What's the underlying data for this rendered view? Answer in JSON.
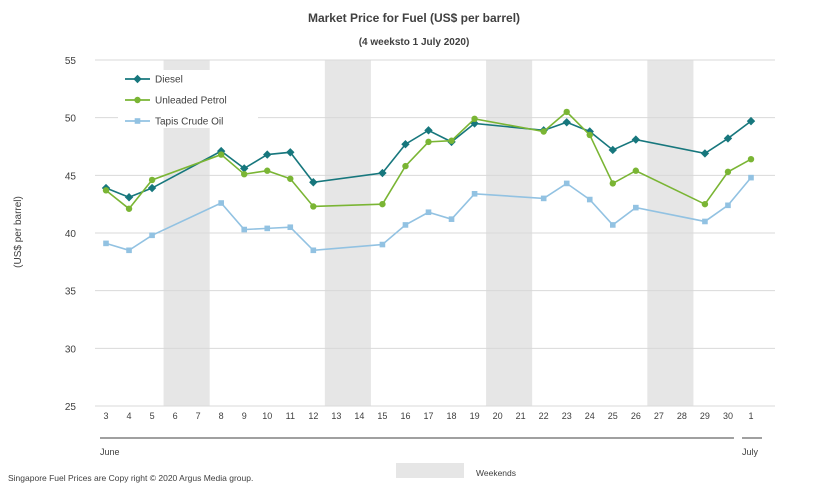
{
  "chart_data": {
    "type": "line",
    "title": "Market Price for Fuel (US$ per barrel)",
    "subtitle": "(4 weeksto 1 July 2020)",
    "ylabel": "(US$ per barrel)",
    "xlabel": "",
    "ylim": [
      25,
      55
    ],
    "yticks": [
      25,
      30,
      35,
      40,
      45,
      50,
      55
    ],
    "grid": true,
    "legend_position": "top-left",
    "categories": [
      "3",
      "4",
      "5",
      "6",
      "7",
      "8",
      "9",
      "10",
      "11",
      "12",
      "13",
      "14",
      "15",
      "16",
      "17",
      "18",
      "19",
      "20",
      "21",
      "22",
      "23",
      "24",
      "25",
      "26",
      "27",
      "28",
      "29",
      "30",
      "1"
    ],
    "month_labels": [
      {
        "label": "June",
        "from": "3",
        "to": "30"
      },
      {
        "label": "July",
        "from": "1",
        "to": "1"
      }
    ],
    "weekends": [
      [
        "6",
        "7"
      ],
      [
        "13",
        "14"
      ],
      [
        "20",
        "21"
      ],
      [
        "27",
        "28"
      ]
    ],
    "weekend_label": "Weekends",
    "series": [
      {
        "name": "Diesel",
        "color": "#17777d",
        "marker": "diamond",
        "points": [
          [
            "3",
            43.9
          ],
          [
            "4",
            43.1
          ],
          [
            "5",
            43.9
          ],
          [
            "8",
            47.1
          ],
          [
            "9",
            45.6
          ],
          [
            "10",
            46.8
          ],
          [
            "11",
            47.0
          ],
          [
            "12",
            44.4
          ],
          [
            "15",
            45.2
          ],
          [
            "16",
            47.7
          ],
          [
            "17",
            48.9
          ],
          [
            "18",
            47.9
          ],
          [
            "19",
            49.5
          ],
          [
            "22",
            48.9
          ],
          [
            "23",
            49.6
          ],
          [
            "24",
            48.8
          ],
          [
            "25",
            47.2
          ],
          [
            "26",
            48.1
          ],
          [
            "29",
            46.9
          ],
          [
            "30",
            48.2
          ],
          [
            "1",
            49.7
          ]
        ]
      },
      {
        "name": "Unleaded Petrol",
        "color": "#7ab534",
        "marker": "circle",
        "points": [
          [
            "3",
            43.7
          ],
          [
            "4",
            42.1
          ],
          [
            "5",
            44.6
          ],
          [
            "8",
            46.8
          ],
          [
            "9",
            45.1
          ],
          [
            "10",
            45.4
          ],
          [
            "11",
            44.7
          ],
          [
            "12",
            42.3
          ],
          [
            "15",
            42.5
          ],
          [
            "16",
            45.8
          ],
          [
            "17",
            47.9
          ],
          [
            "18",
            48.0
          ],
          [
            "19",
            49.9
          ],
          [
            "22",
            48.8
          ],
          [
            "23",
            50.5
          ],
          [
            "24",
            48.5
          ],
          [
            "25",
            44.3
          ],
          [
            "26",
            45.4
          ],
          [
            "29",
            42.5
          ],
          [
            "30",
            45.3
          ],
          [
            "1",
            46.4
          ]
        ]
      },
      {
        "name": "Tapis Crude Oil",
        "color": "#92c2e2",
        "marker": "square",
        "points": [
          [
            "3",
            39.1
          ],
          [
            "4",
            38.5
          ],
          [
            "5",
            39.8
          ],
          [
            "8",
            42.6
          ],
          [
            "9",
            40.3
          ],
          [
            "10",
            40.4
          ],
          [
            "11",
            40.5
          ],
          [
            "12",
            38.5
          ],
          [
            "15",
            39.0
          ],
          [
            "16",
            40.7
          ],
          [
            "17",
            41.8
          ],
          [
            "18",
            41.2
          ],
          [
            "19",
            43.4
          ],
          [
            "22",
            43.0
          ],
          [
            "23",
            44.3
          ],
          [
            "24",
            42.9
          ],
          [
            "25",
            40.7
          ],
          [
            "26",
            42.2
          ],
          [
            "29",
            41.0
          ],
          [
            "30",
            42.4
          ],
          [
            "1",
            44.8
          ]
        ]
      }
    ]
  },
  "footer": {
    "copyright": "Singapore Fuel Prices are Copy right © 2020 Argus Media group."
  }
}
